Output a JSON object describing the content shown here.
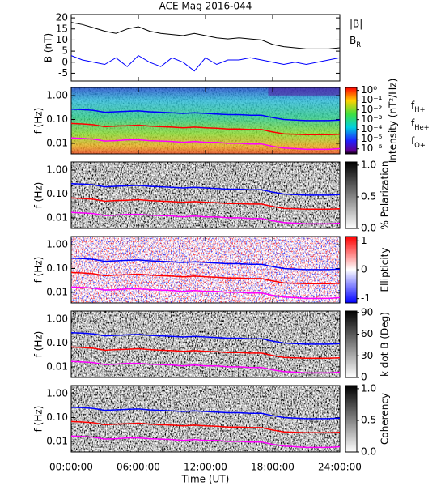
{
  "chart_data": [
    {
      "type": "line",
      "title": "ACE Mag 2016-044",
      "ylabel": "B (nT)",
      "x": [
        0,
        1,
        2,
        3,
        4,
        5,
        6,
        7,
        8,
        9,
        10,
        11,
        12,
        13,
        14,
        15,
        16,
        17,
        18,
        19,
        20,
        21,
        22,
        23,
        24
      ],
      "xlim": [
        0,
        24
      ],
      "ylim": [
        -8.5,
        21.5
      ],
      "yticks": [
        -5,
        0,
        5,
        10,
        15,
        20
      ],
      "series": [
        {
          "name": "|B|",
          "color": "#000000",
          "values": [
            18,
            17,
            15.5,
            14,
            13,
            15,
            16,
            14,
            13,
            12.5,
            12,
            13,
            12,
            11,
            10.5,
            11,
            10.5,
            10,
            8,
            7,
            6.5,
            6,
            6,
            6,
            6.5
          ]
        },
        {
          "name": "BR",
          "color": "#0000ff",
          "values": [
            3,
            1,
            0,
            -1,
            2,
            -2,
            3,
            0,
            -2,
            2,
            0,
            -4,
            2,
            -1,
            1,
            1,
            2,
            1,
            0,
            -1,
            0,
            -1,
            0,
            1,
            2
          ]
        }
      ]
    },
    {
      "type": "spectrogram",
      "ylabel": "f (Hz)",
      "colormap": "rainbow",
      "ylog": true,
      "x": [
        0,
        1,
        2,
        3,
        4,
        5,
        6,
        7,
        8,
        9,
        10,
        11,
        12,
        13,
        14,
        15,
        16,
        17,
        18,
        19,
        20,
        21,
        22,
        23,
        24
      ],
      "xlim": [
        0,
        24
      ],
      "ylim": [
        0.0036,
        2.2
      ],
      "yticks": [
        {
          "value": 1,
          "label": "1.00"
        },
        {
          "value": 0.1,
          "label": "0.10"
        },
        {
          "value": 0.01,
          "label": "0.01"
        }
      ],
      "colorbar_title": "Intensity (nT²/Hz)",
      "clog": true,
      "clim": [
        3e-07,
        2
      ],
      "cticks": [
        {
          "value": 1,
          "label": "10⁰"
        },
        {
          "value": 0.1,
          "label": "10⁻¹"
        },
        {
          "value": 0.01,
          "label": "10⁻²"
        },
        {
          "value": 0.001,
          "label": "10⁻³"
        },
        {
          "value": 0.0001,
          "label": "10⁻⁴"
        },
        {
          "value": 1e-05,
          "label": "10⁻⁵"
        },
        {
          "value": 1e-06,
          "label": "10⁻⁶"
        }
      ],
      "series": [
        {
          "name": "fH+",
          "color": "#0000ff",
          "values": [
            0.27,
            0.26,
            0.24,
            0.2,
            0.21,
            0.22,
            0.23,
            0.21,
            0.2,
            0.19,
            0.18,
            0.19,
            0.18,
            0.17,
            0.16,
            0.16,
            0.15,
            0.15,
            0.12,
            0.1,
            0.095,
            0.09,
            0.09,
            0.09,
            0.095
          ]
        },
        {
          "name": "fHe+",
          "color": "#ff0000",
          "values": [
            0.068,
            0.065,
            0.06,
            0.05,
            0.053,
            0.055,
            0.058,
            0.053,
            0.05,
            0.048,
            0.045,
            0.048,
            0.045,
            0.043,
            0.04,
            0.04,
            0.038,
            0.038,
            0.03,
            0.025,
            0.024,
            0.023,
            0.023,
            0.023,
            0.024
          ]
        },
        {
          "name": "fO+",
          "color": "#ff00ff",
          "values": [
            0.017,
            0.016,
            0.015,
            0.0125,
            0.013,
            0.014,
            0.014,
            0.013,
            0.0125,
            0.012,
            0.011,
            0.012,
            0.011,
            0.011,
            0.01,
            0.01,
            0.0094,
            0.0094,
            0.0075,
            0.0063,
            0.006,
            0.0056,
            0.0056,
            0.0056,
            0.006
          ]
        }
      ]
    },
    {
      "type": "spectrogram",
      "ylabel": "f (Hz)",
      "colormap": "gray",
      "ylog": true,
      "xlim": [
        0,
        24
      ],
      "ylim": [
        0.0036,
        2.2
      ],
      "yticks": [
        {
          "value": 1,
          "label": "1.00"
        },
        {
          "value": 0.1,
          "label": "0.10"
        },
        {
          "value": 0.01,
          "label": "0.01"
        }
      ],
      "colorbar_title": "% Polarization",
      "clim": [
        0,
        1.05
      ],
      "cticks": [
        {
          "value": 0,
          "label": "0.0"
        },
        {
          "value": 0.5,
          "label": "0.5"
        },
        {
          "value": 1,
          "label": "1.0"
        }
      ]
    },
    {
      "type": "spectrogram",
      "ylabel": "f (Hz)",
      "colormap": "bwr",
      "ylog": true,
      "xlim": [
        0,
        24
      ],
      "ylim": [
        0.0036,
        2.2
      ],
      "yticks": [
        {
          "value": 1,
          "label": "1.00"
        },
        {
          "value": 0.1,
          "label": "0.10"
        },
        {
          "value": 0.01,
          "label": "0.01"
        }
      ],
      "colorbar_title": "Ellipticity",
      "clim": [
        -1.15,
        1.15
      ],
      "cticks": [
        -1,
        0,
        1
      ]
    },
    {
      "type": "spectrogram",
      "ylabel": "f (Hz)",
      "colormap": "gray",
      "ylog": true,
      "xlim": [
        0,
        24
      ],
      "ylim": [
        0.0036,
        2.2
      ],
      "yticks": [
        {
          "value": 1,
          "label": "1.00"
        },
        {
          "value": 0.1,
          "label": "0.10"
        },
        {
          "value": 0.01,
          "label": "0.01"
        }
      ],
      "colorbar_title": "k dot B (Deg)",
      "clim": [
        0,
        92
      ],
      "cticks": [
        0,
        30,
        60,
        90
      ]
    },
    {
      "type": "spectrogram",
      "ylabel": "f (Hz)",
      "colormap": "gray",
      "ylog": true,
      "xlim": [
        0,
        24
      ],
      "ylim": [
        0.0036,
        2.2
      ],
      "yticks": [
        {
          "value": 1,
          "label": "1.00"
        },
        {
          "value": 0.1,
          "label": "0.10"
        },
        {
          "value": 0.01,
          "label": "0.01"
        }
      ],
      "colorbar_title": "Coherency",
      "clim": [
        0,
        1.05
      ],
      "cticks": [
        {
          "value": 0,
          "label": "0.0"
        },
        {
          "value": 0.5,
          "label": "0.5"
        },
        {
          "value": 1,
          "label": "1.0"
        }
      ],
      "xlabel": "Time (UT)",
      "xticks": [
        {
          "value": 0,
          "label": "00:00:00"
        },
        {
          "value": 6,
          "label": "06:00:00"
        },
        {
          "value": 12,
          "label": "12:00:00"
        },
        {
          "value": 18,
          "label": "18:00:00"
        },
        {
          "value": 24,
          "label": "24:00:00"
        }
      ]
    }
  ]
}
